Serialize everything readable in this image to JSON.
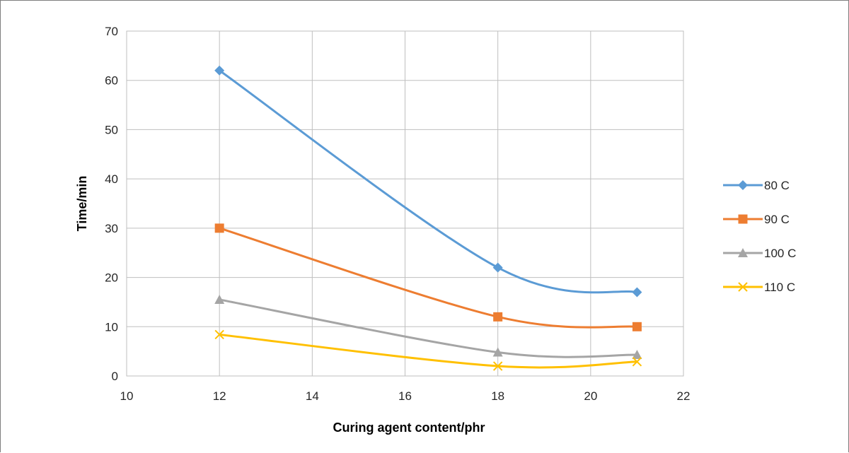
{
  "chart_data": {
    "type": "line",
    "title": "",
    "xlabel": "Curing agent content/phr",
    "ylabel": "Time/min",
    "xlim": [
      10,
      22
    ],
    "ylim": [
      0,
      70
    ],
    "xticks": [
      10,
      12,
      14,
      16,
      18,
      20,
      22
    ],
    "yticks": [
      0,
      10,
      20,
      30,
      40,
      50,
      60,
      70
    ],
    "grid": true,
    "smooth": true,
    "legend_position": "right",
    "series": [
      {
        "name": "80 C",
        "color": "#5B9BD5",
        "marker": "diamond",
        "x": [
          12,
          18,
          21
        ],
        "y": [
          62,
          22,
          17
        ]
      },
      {
        "name": "90 C",
        "color": "#ED7D31",
        "marker": "square",
        "x": [
          12,
          18,
          21
        ],
        "y": [
          30,
          12,
          10
        ]
      },
      {
        "name": "100 C",
        "color": "#A5A5A5",
        "marker": "triangle",
        "x": [
          12,
          18,
          21
        ],
        "y": [
          15.5,
          4.8,
          4.3
        ]
      },
      {
        "name": "110 C",
        "color": "#FFC000",
        "marker": "x",
        "x": [
          12,
          18,
          21
        ],
        "y": [
          8.4,
          2,
          2.9
        ]
      }
    ]
  }
}
